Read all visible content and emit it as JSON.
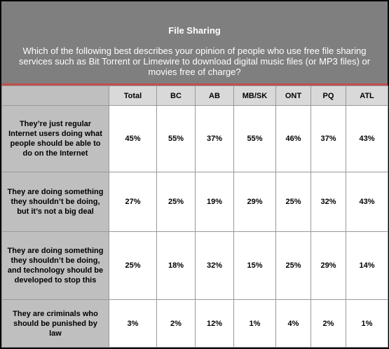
{
  "header": {
    "title": "File Sharing",
    "question": "Which of the following best describes your opinion of people who use free file sharing services such as Bit Torrent or Limewire to download digital music files (or MP3 files) or movies free of charge?"
  },
  "table": {
    "columns": [
      "Total",
      "BC",
      "AB",
      "MB/SK",
      "ONT",
      "PQ",
      "ATL"
    ],
    "rows": [
      {
        "label": "They’re just regular Internet users doing what people should be able to do on the Internet",
        "values": [
          "45%",
          "55%",
          "37%",
          "55%",
          "46%",
          "37%",
          "43%"
        ]
      },
      {
        "label": "They are doing something they shouldn’t be doing, but it’s not a big deal",
        "values": [
          "27%",
          "25%",
          "19%",
          "29%",
          "25%",
          "32%",
          "43%"
        ]
      },
      {
        "label": "They are doing something they shouldn’t be doing, and technology should be developed to stop this",
        "values": [
          "25%",
          "18%",
          "32%",
          "15%",
          "25%",
          "29%",
          "14%"
        ]
      },
      {
        "label": "They are criminals who should be punished by law",
        "values": [
          "3%",
          "2%",
          "12%",
          "1%",
          "4%",
          "2%",
          "1%"
        ]
      }
    ]
  }
}
